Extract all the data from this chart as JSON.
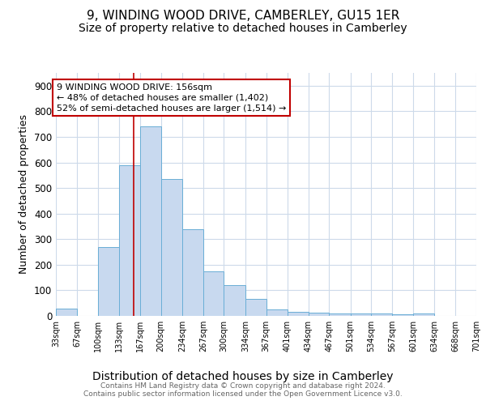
{
  "title": "9, WINDING WOOD DRIVE, CAMBERLEY, GU15 1ER",
  "subtitle": "Size of property relative to detached houses in Camberley",
  "xlabel": "Distribution of detached houses by size in Camberley",
  "ylabel": "Number of detached properties",
  "bin_edges": [
    33,
    67,
    100,
    133,
    167,
    200,
    234,
    267,
    300,
    334,
    367,
    401,
    434,
    467,
    501,
    534,
    567,
    601,
    634,
    668,
    701
  ],
  "bar_heights": [
    27,
    0,
    270,
    590,
    740,
    535,
    340,
    175,
    120,
    67,
    25,
    15,
    13,
    10,
    8,
    8,
    7,
    8,
    0,
    0
  ],
  "bar_color": "#c8d9ef",
  "bar_edge_color": "#6aaed6",
  "vline_x": 156,
  "vline_color": "#c00000",
  "ylim": [
    0,
    950
  ],
  "yticks": [
    0,
    100,
    200,
    300,
    400,
    500,
    600,
    700,
    800,
    900
  ],
  "annotation_text": "9 WINDING WOOD DRIVE: 156sqm\n← 48% of detached houses are smaller (1,402)\n52% of semi-detached houses are larger (1,514) →",
  "annotation_box_color": "#ffffff",
  "annotation_box_edgecolor": "#c00000",
  "footer1": "Contains HM Land Registry data © Crown copyright and database right 2024.",
  "footer2": "Contains public sector information licensed under the Open Government Licence v3.0.",
  "title_fontsize": 11,
  "subtitle_fontsize": 10,
  "xlabel_fontsize": 10,
  "ylabel_fontsize": 9,
  "annotation_fontsize": 8,
  "tick_labels": [
    "33sqm",
    "67sqm",
    "100sqm",
    "133sqm",
    "167sqm",
    "200sqm",
    "234sqm",
    "267sqm",
    "300sqm",
    "334sqm",
    "367sqm",
    "401sqm",
    "434sqm",
    "467sqm",
    "501sqm",
    "534sqm",
    "567sqm",
    "601sqm",
    "634sqm",
    "668sqm",
    "701sqm"
  ],
  "bg_color": "#ffffff",
  "grid_color": "#cddaea"
}
